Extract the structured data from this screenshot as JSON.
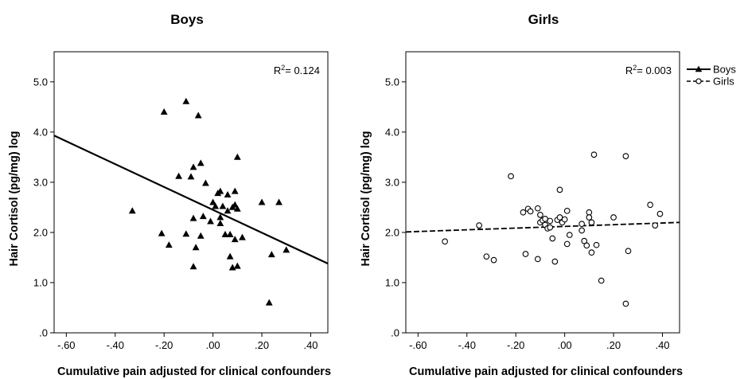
{
  "chart_data": [
    {
      "type": "scatter",
      "title": "Boys",
      "xlabel": "Cumulative pain adjusted for clinical confounders",
      "ylabel": "Hair Cortisol (pg/mg) log",
      "xlim": [
        -0.65,
        0.47
      ],
      "ylim": [
        0.0,
        5.6
      ],
      "xticks": [
        -0.6,
        -0.4,
        -0.2,
        0.0,
        0.2,
        0.4
      ],
      "xtick_labels": [
        "-.60",
        "-.40",
        "-.20",
        ".00",
        ".20",
        ".40"
      ],
      "yticks": [
        0,
        1.0,
        2.0,
        3.0,
        4.0,
        5.0
      ],
      "ytick_labels": [
        ".0",
        "1.0",
        "2.0",
        "3.0",
        "4.0",
        "5.0"
      ],
      "r2_label": "R",
      "r2_exp": "2",
      "r2_value": "= 0.124",
      "marker": "triangle",
      "fit_line": {
        "x": [
          -0.65,
          0.47
        ],
        "y": [
          3.93,
          1.38
        ],
        "style": "solid"
      },
      "points": [
        [
          -0.33,
          2.43
        ],
        [
          -0.2,
          4.4
        ],
        [
          -0.21,
          1.98
        ],
        [
          -0.18,
          1.75
        ],
        [
          -0.14,
          3.12
        ],
        [
          -0.11,
          4.61
        ],
        [
          -0.11,
          1.97
        ],
        [
          -0.09,
          3.11
        ],
        [
          -0.08,
          3.3
        ],
        [
          -0.08,
          2.28
        ],
        [
          -0.08,
          1.32
        ],
        [
          -0.07,
          1.7
        ],
        [
          -0.06,
          4.33
        ],
        [
          -0.05,
          3.38
        ],
        [
          -0.05,
          1.93
        ],
        [
          -0.04,
          2.32
        ],
        [
          -0.03,
          2.98
        ],
        [
          -0.01,
          2.22
        ],
        [
          0.0,
          2.6
        ],
        [
          0.01,
          2.52
        ],
        [
          0.02,
          2.78
        ],
        [
          0.03,
          2.82
        ],
        [
          0.03,
          2.3
        ],
        [
          0.03,
          2.18
        ],
        [
          0.04,
          2.52
        ],
        [
          0.05,
          1.96
        ],
        [
          0.06,
          2.75
        ],
        [
          0.06,
          2.43
        ],
        [
          0.07,
          1.52
        ],
        [
          0.07,
          1.96
        ],
        [
          0.08,
          2.5
        ],
        [
          0.08,
          1.3
        ],
        [
          0.09,
          2.82
        ],
        [
          0.09,
          2.55
        ],
        [
          0.09,
          1.86
        ],
        [
          0.1,
          2.47
        ],
        [
          0.1,
          3.5
        ],
        [
          0.1,
          1.33
        ],
        [
          0.12,
          1.9
        ],
        [
          0.2,
          2.6
        ],
        [
          0.23,
          0.6
        ],
        [
          0.24,
          1.56
        ],
        [
          0.27,
          2.6
        ],
        [
          0.3,
          1.65
        ]
      ]
    },
    {
      "type": "scatter",
      "title": "Girls",
      "xlabel": "Cumulative pain adjusted for clinical confounders",
      "ylabel": "Hair Cortisol (pg/mg) log",
      "xlim": [
        -0.65,
        0.47
      ],
      "ylim": [
        0.0,
        5.6
      ],
      "xticks": [
        -0.6,
        -0.4,
        -0.2,
        0.0,
        0.2,
        0.4
      ],
      "xtick_labels": [
        "-.60",
        "-.40",
        "-.20",
        ".00",
        ".20",
        ".40"
      ],
      "yticks": [
        0,
        1.0,
        2.0,
        3.0,
        4.0,
        5.0
      ],
      "ytick_labels": [
        ".0",
        "1.0",
        "2.0",
        "3.0",
        "4.0",
        "5.0"
      ],
      "r2_label": "R",
      "r2_exp": "2",
      "r2_value": "= 0.003",
      "marker": "circle",
      "fit_line": {
        "x": [
          -0.65,
          0.47
        ],
        "y": [
          2.01,
          2.2
        ],
        "style": "dashed"
      },
      "points": [
        [
          -0.49,
          1.82
        ],
        [
          -0.35,
          2.14
        ],
        [
          -0.32,
          1.52
        ],
        [
          -0.29,
          1.45
        ],
        [
          -0.22,
          3.12
        ],
        [
          -0.17,
          2.4
        ],
        [
          -0.16,
          1.57
        ],
        [
          -0.15,
          2.47
        ],
        [
          -0.14,
          2.42
        ],
        [
          -0.11,
          1.47
        ],
        [
          -0.11,
          2.48
        ],
        [
          -0.1,
          2.35
        ],
        [
          -0.1,
          2.2
        ],
        [
          -0.09,
          2.24
        ],
        [
          -0.08,
          2.15
        ],
        [
          -0.08,
          2.27
        ],
        [
          -0.07,
          2.08
        ],
        [
          -0.06,
          2.23
        ],
        [
          -0.06,
          2.1
        ],
        [
          -0.05,
          1.88
        ],
        [
          -0.04,
          1.42
        ],
        [
          -0.03,
          2.25
        ],
        [
          -0.02,
          2.3
        ],
        [
          -0.02,
          2.85
        ],
        [
          -0.01,
          2.2
        ],
        [
          0.0,
          2.26
        ],
        [
          0.01,
          2.43
        ],
        [
          0.01,
          1.77
        ],
        [
          0.02,
          1.95
        ],
        [
          0.07,
          2.17
        ],
        [
          0.07,
          2.04
        ],
        [
          0.08,
          1.83
        ],
        [
          0.09,
          1.74
        ],
        [
          0.1,
          2.4
        ],
        [
          0.1,
          2.3
        ],
        [
          0.11,
          2.2
        ],
        [
          0.11,
          1.6
        ],
        [
          0.12,
          3.55
        ],
        [
          0.13,
          1.75
        ],
        [
          0.15,
          1.04
        ],
        [
          0.2,
          2.3
        ],
        [
          0.25,
          3.52
        ],
        [
          0.25,
          0.58
        ],
        [
          0.26,
          1.63
        ],
        [
          0.35,
          2.55
        ],
        [
          0.37,
          2.14
        ],
        [
          0.39,
          2.37
        ]
      ]
    }
  ],
  "legend": {
    "items": [
      {
        "label": "Boys",
        "marker": "triangle",
        "line": "solid"
      },
      {
        "label": "Girls",
        "marker": "circle",
        "line": "dashed"
      }
    ]
  }
}
